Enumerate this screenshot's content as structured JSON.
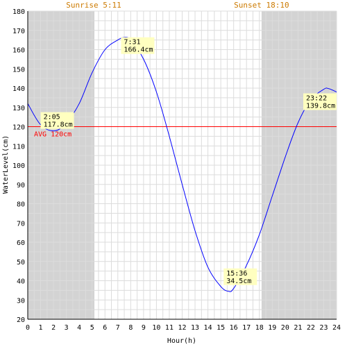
{
  "chart_data": {
    "type": "line",
    "xlabel": "Hour(h)",
    "ylabel": "WaterLevel(cm)",
    "xlim": [
      0,
      24
    ],
    "ylim": [
      20,
      180
    ],
    "x_ticks": [
      "0",
      "1",
      "2",
      "3",
      "4",
      "5",
      "6",
      "7",
      "8",
      "9",
      "10",
      "11",
      "12",
      "13",
      "14",
      "15",
      "16",
      "17",
      "18",
      "19",
      "20",
      "21",
      "22",
      "23",
      "24"
    ],
    "y_ticks": [
      "20",
      "30",
      "40",
      "50",
      "60",
      "70",
      "80",
      "90",
      "100",
      "110",
      "120",
      "130",
      "140",
      "150",
      "160",
      "170",
      "180"
    ],
    "grid": true,
    "sunrise": {
      "label": "Sunrise 5:11",
      "hour": 5.18
    },
    "sunset": {
      "label": "Sunset 18:10",
      "hour": 18.17
    },
    "average": {
      "label": "AVG 120cm",
      "value": 120
    },
    "series": [
      {
        "x": [
          0,
          1,
          2.08,
          3,
          4,
          5,
          6,
          7,
          7.52,
          8,
          9,
          10,
          11,
          12,
          13,
          14,
          15,
          15.6,
          16,
          17,
          18,
          19,
          20,
          21,
          22,
          23,
          23.37,
          24
        ],
        "values": [
          132,
          121,
          117.8,
          122,
          132,
          148,
          160,
          165,
          166.4,
          165,
          155,
          138,
          115,
          90,
          66,
          47,
          37,
          34.5,
          36,
          48,
          64,
          84,
          104,
          122,
          134,
          139.4,
          139.8,
          138
        ]
      }
    ],
    "annotations": [
      {
        "time": "2:05",
        "value": "117.8cm",
        "hour": 2.08,
        "level": 117.8
      },
      {
        "time": "7:31",
        "value": "166.4cm",
        "hour": 7.52,
        "level": 166.4
      },
      {
        "time": "15:36",
        "value": "34.5cm",
        "hour": 15.6,
        "level": 34.5
      },
      {
        "time": "23:22",
        "value": "139.8cm",
        "hour": 23.37,
        "level": 139.8
      }
    ],
    "colors": {
      "line": "#0000ff",
      "avg": "#ff0000",
      "night": "#d3d3d3",
      "grid": "#dcdcdc",
      "label_bg": "#ffffc0",
      "sun_text": "#cc7a00"
    }
  }
}
